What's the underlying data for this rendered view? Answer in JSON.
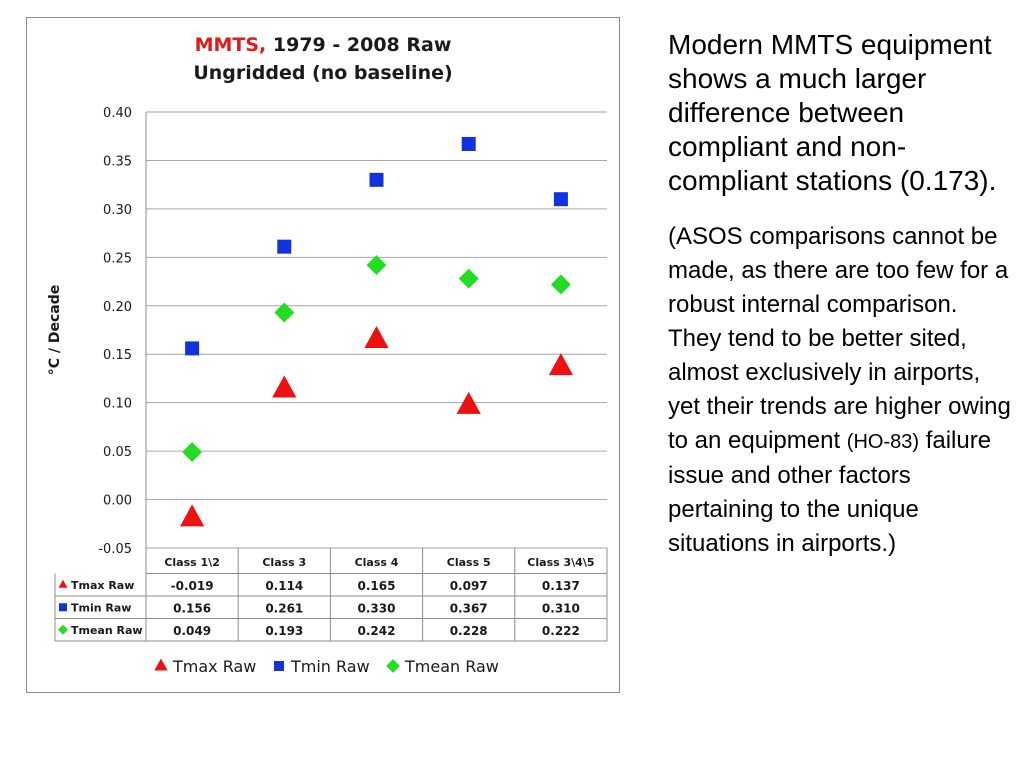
{
  "chart_data": {
    "type": "scatter",
    "title_highlight": "MMTS,",
    "title_rest": " 1979 - 2008 Raw",
    "subtitle": "Ungridded (no baseline)",
    "ylabel": "°C / Decade",
    "ylim": [
      -0.05,
      0.4
    ],
    "yticks": [
      "0.40",
      "0.35",
      "0.30",
      "0.25",
      "0.20",
      "0.15",
      "0.10",
      "0.05",
      "0.00",
      "-0.05"
    ],
    "ytick_values": [
      0.4,
      0.35,
      0.3,
      0.25,
      0.2,
      0.15,
      0.1,
      0.05,
      0.0,
      -0.05
    ],
    "grid": true,
    "legend_position": "bottom",
    "categories": [
      "Class 1\\2",
      "Class 3",
      "Class 4",
      "Class 5",
      "Class 3\\4\\5"
    ],
    "series": [
      {
        "name": "Tmax Raw",
        "marker": "triangle",
        "color": "#ee1111",
        "values": [
          -0.019,
          0.114,
          0.165,
          0.097,
          0.137
        ],
        "labels": [
          "-0.019",
          "0.114",
          "0.165",
          "0.097",
          "0.137"
        ]
      },
      {
        "name": "Tmin Raw",
        "marker": "square",
        "color": "#1133dd",
        "values": [
          0.156,
          0.261,
          0.33,
          0.367,
          0.31
        ],
        "labels": [
          "0.156",
          "0.261",
          "0.330",
          "0.367",
          "0.310"
        ]
      },
      {
        "name": "Tmean Raw",
        "marker": "diamond",
        "color": "#22dd22",
        "values": [
          0.049,
          0.193,
          0.242,
          0.228,
          0.222
        ],
        "labels": [
          "0.049",
          "0.193",
          "0.242",
          "0.228",
          "0.222"
        ]
      }
    ]
  },
  "side_text": {
    "paragraph1": "Modern MMTS equipment shows a much larger difference between compliant and non-compliant stations (0.173).",
    "paragraph2_start": "(ASOS comparisons cannot be made, as there are too few for a robust internal comparison. They tend to be better sited, almost exclusively in airports, yet their trends are higher owing to an equipment ",
    "paragraph2_small": "(HO-83)",
    "paragraph2_end": " failure issue and other factors pertaining to the unique situations in airports.)"
  }
}
